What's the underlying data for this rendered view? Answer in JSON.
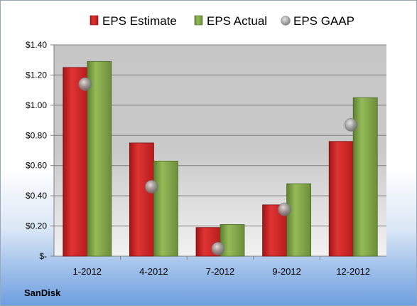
{
  "company": "SanDisk",
  "chart_data": {
    "type": "bar",
    "categories": [
      "1-2012",
      "4-2012",
      "7-2012",
      "9-2012",
      "12-2012"
    ],
    "series": [
      {
        "name": "EPS Estimate",
        "type": "bar",
        "color": "#d42424",
        "values": [
          1.25,
          0.75,
          0.19,
          0.34,
          0.76
        ]
      },
      {
        "name": "EPS Actual",
        "type": "bar",
        "color": "#7fa446",
        "values": [
          1.29,
          0.63,
          0.21,
          0.48,
          1.05
        ]
      },
      {
        "name": "EPS GAAP",
        "type": "scatter",
        "color": "#9a9a9a",
        "values": [
          1.14,
          0.46,
          0.05,
          0.31,
          0.87
        ]
      }
    ],
    "ylim": [
      0,
      1.4
    ],
    "yticks": [
      {
        "value": 0,
        "label": "$-"
      },
      {
        "value": 0.2,
        "label": "$0.20"
      },
      {
        "value": 0.4,
        "label": "$0.40"
      },
      {
        "value": 0.6,
        "label": "$0.60"
      },
      {
        "value": 0.8,
        "label": "$0.80"
      },
      {
        "value": 1.0,
        "label": "$1.00"
      },
      {
        "value": 1.2,
        "label": "$1.20"
      },
      {
        "value": 1.4,
        "label": "$1.40"
      }
    ],
    "legend_position": "top",
    "grid": true
  }
}
